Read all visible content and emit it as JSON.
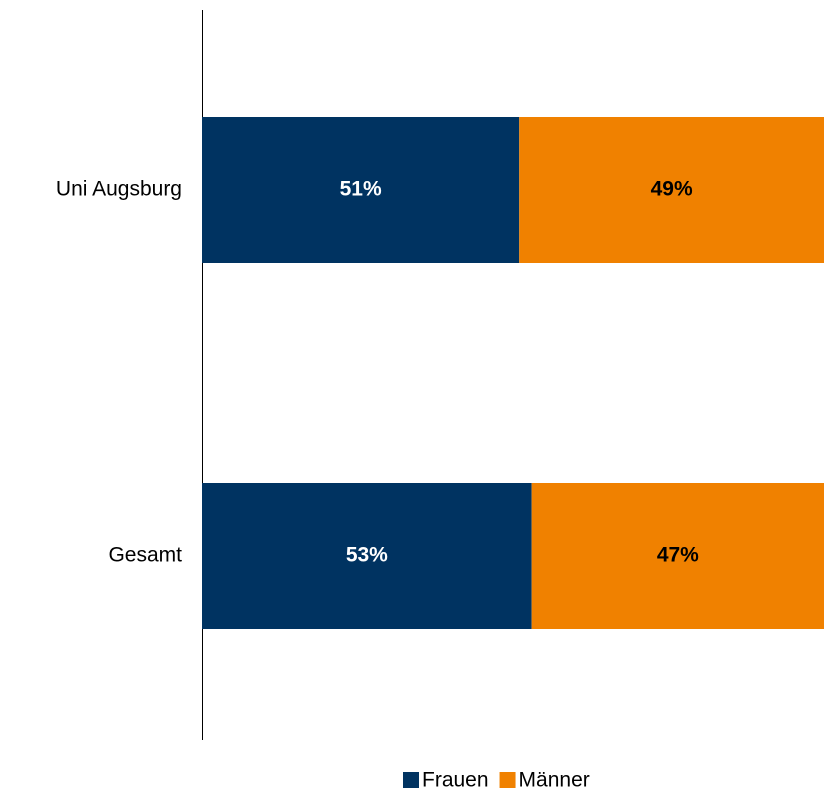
{
  "chart_data": {
    "type": "stacked_barh",
    "categories": [
      "Uni Augsburg",
      "Gesamt"
    ],
    "series": [
      {
        "name": "Frauen",
        "color": "#003361",
        "values": [
          51,
          53
        ],
        "value_labels": [
          "51%",
          "53%"
        ],
        "label_color": "#ffffff"
      },
      {
        "name": "Männer",
        "color": "#f08100",
        "values": [
          49,
          47
        ],
        "value_labels": [
          "49%",
          "47%"
        ],
        "label_color": "#000000"
      }
    ],
    "xlim": [
      0,
      100
    ],
    "legend": "bottom"
  }
}
